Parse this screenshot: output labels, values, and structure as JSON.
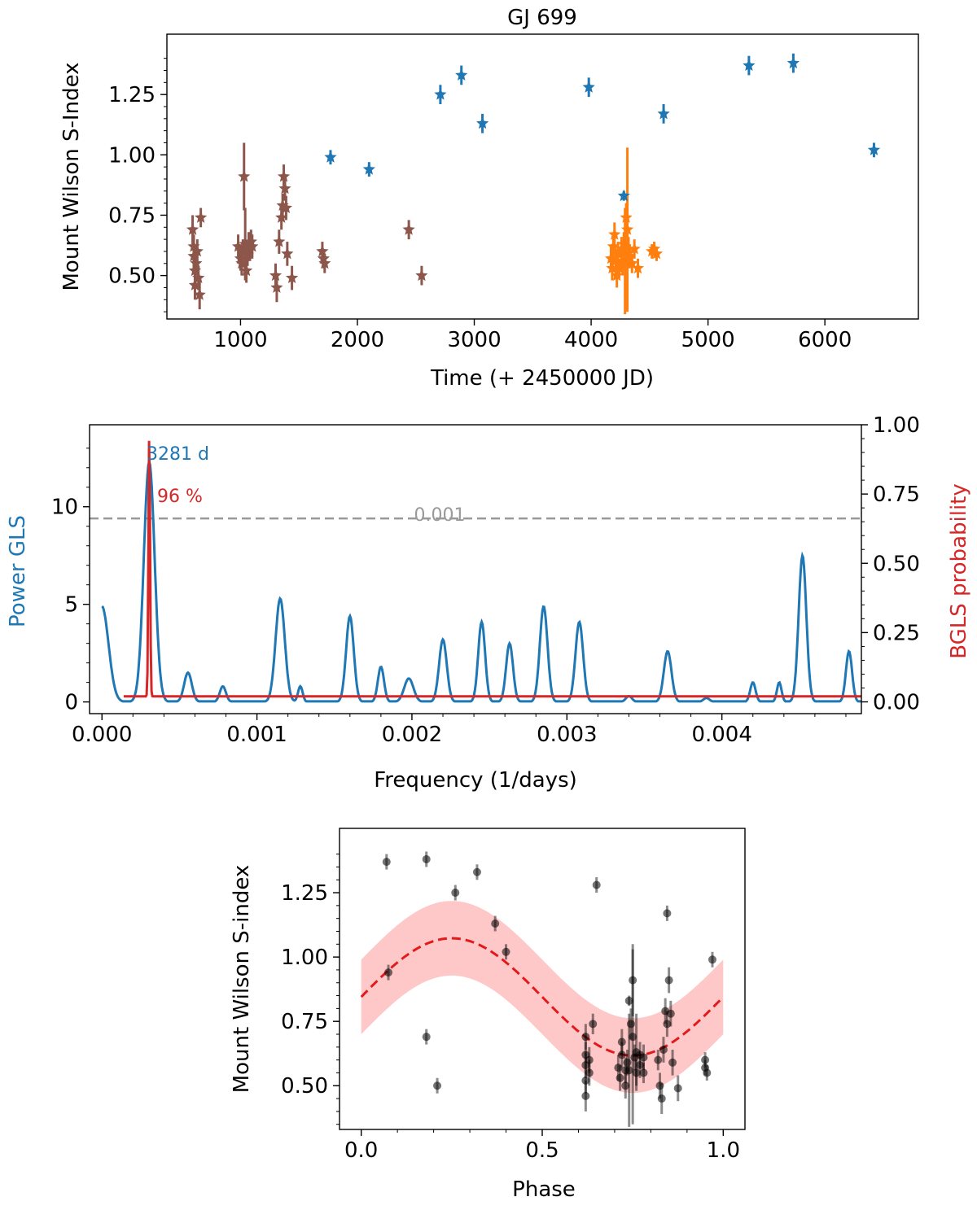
{
  "colors": {
    "blue": "#1f77b4",
    "orange": "#ff7f0e",
    "brown": "#8c564b",
    "red": "#d62728",
    "gray": "#999999",
    "black": "#000000",
    "band": "#ffb0b0",
    "dashred": "#e31a1c"
  },
  "chart_data": [
    {
      "type": "scatter",
      "title": "GJ 699",
      "xlabel": "Time (+ 2450000 JD)",
      "ylabel": "Mount Wilson S-Index",
      "xlim": [
        370,
        6800
      ],
      "ylim": [
        0.32,
        1.5
      ],
      "xticks": [
        1000,
        2000,
        3000,
        4000,
        5000,
        6000
      ],
      "xtick_labels": [
        "1000",
        "2000",
        "3000",
        "4000",
        "5000",
        "6000"
      ],
      "yticks": [
        0.5,
        0.75,
        1.0,
        1.25
      ],
      "ytick_labels": [
        "0.50",
        "0.75",
        "1.00",
        "1.25"
      ],
      "marker": "star",
      "series": [
        {
          "name": "brown",
          "color": "#8c564b",
          "points": [
            [
              590,
              0.69,
              0.06
            ],
            [
              600,
              0.62,
              0.05
            ],
            [
              600,
              0.58,
              0.05
            ],
            [
              610,
              0.52,
              0.05
            ],
            [
              610,
              0.46,
              0.06
            ],
            [
              620,
              0.55,
              0.05
            ],
            [
              630,
              0.6,
              0.05
            ],
            [
              640,
              0.49,
              0.05
            ],
            [
              650,
              0.42,
              0.06
            ],
            [
              660,
              0.74,
              0.04
            ],
            [
              980,
              0.62,
              0.05
            ],
            [
              1000,
              0.57,
              0.05
            ],
            [
              1010,
              0.55,
              0.05
            ],
            [
              1020,
              0.6,
              0.05
            ],
            [
              1030,
              0.91,
              0.14
            ],
            [
              1040,
              0.63,
              0.15
            ],
            [
              1050,
              0.52,
              0.05
            ],
            [
              1060,
              0.59,
              0.05
            ],
            [
              1070,
              0.63,
              0.05
            ],
            [
              1080,
              0.61,
              0.05
            ],
            [
              1090,
              0.64,
              0.05
            ],
            [
              1100,
              0.62,
              0.05
            ],
            [
              1300,
              0.5,
              0.05
            ],
            [
              1310,
              0.45,
              0.06
            ],
            [
              1330,
              0.64,
              0.05
            ],
            [
              1350,
              0.74,
              0.05
            ],
            [
              1360,
              0.79,
              0.05
            ],
            [
              1370,
              0.91,
              0.05
            ],
            [
              1380,
              0.86,
              0.05
            ],
            [
              1390,
              0.78,
              0.05
            ],
            [
              1400,
              0.59,
              0.05
            ],
            [
              1440,
              0.49,
              0.05
            ],
            [
              1700,
              0.6,
              0.04
            ],
            [
              1710,
              0.57,
              0.04
            ],
            [
              1720,
              0.55,
              0.04
            ],
            [
              2440,
              0.69,
              0.04
            ],
            [
              2550,
              0.5,
              0.04
            ]
          ]
        },
        {
          "name": "orange",
          "color": "#ff7f0e",
          "points": [
            [
              4170,
              0.57,
              0.05
            ],
            [
              4180,
              0.53,
              0.05
            ],
            [
              4190,
              0.62,
              0.05
            ],
            [
              4200,
              0.67,
              0.05
            ],
            [
              4210,
              0.56,
              0.05
            ],
            [
              4220,
              0.5,
              0.05
            ],
            [
              4230,
              0.59,
              0.05
            ],
            [
              4240,
              0.53,
              0.04
            ],
            [
              4260,
              0.61,
              0.05
            ],
            [
              4270,
              0.55,
              0.05
            ],
            [
              4280,
              0.63,
              0.05
            ],
            [
              4290,
              0.56,
              0.22
            ],
            [
              4300,
              0.74,
              0.06
            ],
            [
              4310,
              0.69,
              0.34
            ],
            [
              4320,
              0.61,
              0.05
            ],
            [
              4330,
              0.58,
              0.05
            ],
            [
              4350,
              0.55,
              0.04
            ],
            [
              4370,
              0.61,
              0.04
            ],
            [
              4400,
              0.53,
              0.04
            ],
            [
              4520,
              0.6,
              0.03
            ],
            [
              4540,
              0.61,
              0.03
            ],
            [
              4560,
              0.59,
              0.03
            ]
          ]
        },
        {
          "name": "blue",
          "color": "#1f77b4",
          "points": [
            [
              1770,
              0.99,
              0.03
            ],
            [
              2100,
              0.94,
              0.03
            ],
            [
              2710,
              1.25,
              0.04
            ],
            [
              2890,
              1.33,
              0.04
            ],
            [
              3070,
              1.13,
              0.04
            ],
            [
              3980,
              1.28,
              0.04
            ],
            [
              4280,
              0.83,
              0.02
            ],
            [
              4620,
              1.17,
              0.04
            ],
            [
              5350,
              1.37,
              0.04
            ],
            [
              5730,
              1.38,
              0.04
            ],
            [
              6420,
              1.02,
              0.03
            ]
          ]
        }
      ]
    },
    {
      "type": "line",
      "xlabel": "Frequency (1/days)",
      "ylabel": "Power GLS",
      "ylabel_right": "BGLS probability",
      "xlim": [
        -8e-05,
        0.0049
      ],
      "ylim": [
        -0.6,
        14.2
      ],
      "ylim_right": [
        -0.0425,
        1.0
      ],
      "xticks": [
        0.0,
        0.001,
        0.002,
        0.003,
        0.004
      ],
      "xtick_labels": [
        "0.000",
        "0.001",
        "0.002",
        "0.003",
        "0.004"
      ],
      "yticks": [
        0,
        5,
        10
      ],
      "ytick_labels": [
        "0",
        "5",
        "10"
      ],
      "yticks_right": [
        0.0,
        0.25,
        0.5,
        0.75,
        1.0
      ],
      "ytick_labels_right": [
        "0.00",
        "0.25",
        "0.50",
        "0.75",
        "1.00"
      ],
      "threshold": {
        "value": 9.4,
        "label": "0.001"
      },
      "peak_label": "3281 d",
      "prob_label": "96 %",
      "gls_peaks": [
        [
          0.000305,
          12.3,
          7e-05
        ],
        [
          0.000555,
          1.5,
          5e-05
        ],
        [
          0.00078,
          0.8,
          4e-05
        ],
        [
          0.00115,
          5.3,
          6e-05
        ],
        [
          0.00128,
          0.8,
          3e-05
        ],
        [
          0.0016,
          4.4,
          5e-05
        ],
        [
          0.0018,
          1.8,
          4e-05
        ],
        [
          0.00198,
          1.2,
          6e-05
        ],
        [
          0.0022,
          3.2,
          5e-05
        ],
        [
          0.00245,
          4.1,
          4.5e-05
        ],
        [
          0.00263,
          3.0,
          4.5e-05
        ],
        [
          0.00285,
          4.9,
          5e-05
        ],
        [
          0.00308,
          4.1,
          5e-05
        ],
        [
          0.0034,
          0.3,
          4e-05
        ],
        [
          0.00365,
          2.6,
          5e-05
        ],
        [
          0.0039,
          0.2,
          4e-05
        ],
        [
          0.0042,
          1.0,
          3.5e-05
        ],
        [
          0.00437,
          1.0,
          3e-05
        ],
        [
          0.00452,
          7.5,
          5e-05
        ],
        [
          0.00482,
          2.6,
          4e-05
        ]
      ],
      "bgls": {
        "x_start": 0.00014,
        "x_end": 0.0049,
        "peak_x": 0.000305,
        "peak_value": 0.96,
        "baseline": 0.02,
        "width": 7.5e-06
      }
    },
    {
      "type": "scatter",
      "xlabel": "Phase",
      "ylabel": "Mount Wilson S-index",
      "xlim": [
        -0.06,
        1.06
      ],
      "ylim": [
        0.33,
        1.5
      ],
      "xticks": [
        0.0,
        0.5,
        1.0
      ],
      "xtick_labels": [
        "0.0",
        "0.5",
        "1.0"
      ],
      "yticks": [
        0.5,
        0.75,
        1.0,
        1.25
      ],
      "ytick_labels": [
        "0.50",
        "0.75",
        "1.00",
        "1.25"
      ],
      "model": {
        "mean": 0.845,
        "amplitude": 0.228,
        "phase_peak": 0.25,
        "band_halfwidth": 0.145
      },
      "points": [
        [
          0.07,
          1.37,
          0.03
        ],
        [
          0.075,
          0.94,
          0.03
        ],
        [
          0.18,
          1.38,
          0.03
        ],
        [
          0.18,
          0.69,
          0.03
        ],
        [
          0.21,
          0.5,
          0.03
        ],
        [
          0.26,
          1.25,
          0.03
        ],
        [
          0.32,
          1.33,
          0.03
        ],
        [
          0.37,
          1.13,
          0.03
        ],
        [
          0.4,
          1.02,
          0.03
        ],
        [
          0.65,
          1.28,
          0.03
        ],
        [
          0.62,
          0.69,
          0.05
        ],
        [
          0.62,
          0.62,
          0.05
        ],
        [
          0.62,
          0.58,
          0.05
        ],
        [
          0.62,
          0.52,
          0.05
        ],
        [
          0.62,
          0.46,
          0.06
        ],
        [
          0.63,
          0.55,
          0.05
        ],
        [
          0.63,
          0.6,
          0.05
        ],
        [
          0.64,
          0.74,
          0.04
        ],
        [
          0.71,
          0.57,
          0.05
        ],
        [
          0.715,
          0.53,
          0.05
        ],
        [
          0.72,
          0.62,
          0.05
        ],
        [
          0.72,
          0.67,
          0.05
        ],
        [
          0.73,
          0.56,
          0.05
        ],
        [
          0.73,
          0.5,
          0.05
        ],
        [
          0.735,
          0.59,
          0.05
        ],
        [
          0.74,
          0.83,
          0.02
        ],
        [
          0.74,
          0.56,
          0.22
        ],
        [
          0.745,
          0.74,
          0.06
        ],
        [
          0.75,
          0.69,
          0.34
        ],
        [
          0.75,
          0.91,
          0.14
        ],
        [
          0.755,
          0.61,
          0.05
        ],
        [
          0.76,
          0.55,
          0.05
        ],
        [
          0.76,
          0.63,
          0.15
        ],
        [
          0.77,
          0.58,
          0.05
        ],
        [
          0.77,
          0.62,
          0.05
        ],
        [
          0.78,
          0.61,
          0.05
        ],
        [
          0.78,
          0.55,
          0.04
        ],
        [
          0.82,
          0.6,
          0.04
        ],
        [
          0.825,
          0.5,
          0.05
        ],
        [
          0.83,
          0.45,
          0.06
        ],
        [
          0.835,
          0.64,
          0.05
        ],
        [
          0.84,
          0.79,
          0.05
        ],
        [
          0.845,
          0.74,
          0.05
        ],
        [
          0.845,
          1.17,
          0.03
        ],
        [
          0.85,
          0.91,
          0.05
        ],
        [
          0.855,
          0.78,
          0.05
        ],
        [
          0.86,
          0.59,
          0.05
        ],
        [
          0.875,
          0.49,
          0.05
        ],
        [
          0.95,
          0.6,
          0.03
        ],
        [
          0.95,
          0.57,
          0.03
        ],
        [
          0.955,
          0.55,
          0.03
        ],
        [
          0.97,
          0.99,
          0.03
        ]
      ]
    }
  ]
}
